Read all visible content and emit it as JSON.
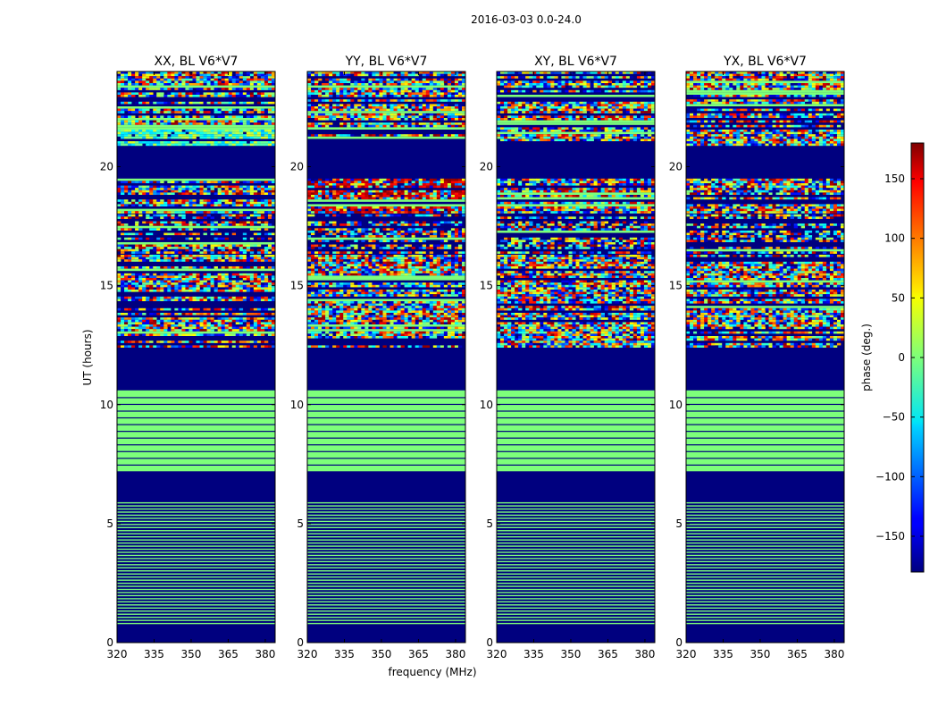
{
  "chart_data": {
    "type": "heatmap",
    "title": "2016-03-03 0.0-24.0",
    "xlabel": "frequency (MHz)",
    "ylabel": "UT (hours)",
    "xlim": [
      320,
      384
    ],
    "ylim": [
      0,
      24
    ],
    "xticks": [
      320,
      335,
      350,
      365,
      380
    ],
    "yticks": [
      0,
      5,
      10,
      15,
      20
    ],
    "colormap": "jet",
    "colorbar": {
      "label": "phase (deg.)",
      "range": [
        -180,
        180
      ],
      "ticks": [
        -150,
        -100,
        -50,
        0,
        50,
        100,
        150
      ],
      "tick_labels": [
        "−150",
        "−100",
        "−50",
        "0",
        "50",
        "100",
        "150"
      ]
    },
    "panels": [
      {
        "title": "XX, BL V6*V7"
      },
      {
        "title": "YY, BL V6*V7"
      },
      {
        "title": "XY, BL V6*V7"
      },
      {
        "title": "YX, BL V6*V7"
      }
    ],
    "time_segments_hours": [
      {
        "start": 0.0,
        "end": 0.7,
        "pattern": "flag"
      },
      {
        "start": 0.7,
        "end": 5.9,
        "pattern": "stripes"
      },
      {
        "start": 5.9,
        "end": 7.2,
        "pattern": "flag"
      },
      {
        "start": 7.2,
        "end": 10.6,
        "pattern": "solid-zero"
      },
      {
        "start": 10.6,
        "end": 12.3,
        "pattern": "flag"
      },
      {
        "start": 12.3,
        "end": 16.3,
        "pattern": "noise"
      },
      {
        "start": 16.3,
        "end": 18.0,
        "pattern": "noise-sparse"
      },
      {
        "start": 18.0,
        "end": 19.5,
        "pattern": "noise"
      },
      {
        "start": 19.5,
        "end": 20.8,
        "pattern": "flag"
      },
      {
        "start": 20.8,
        "end": 24.0,
        "pattern": "noise"
      }
    ]
  }
}
